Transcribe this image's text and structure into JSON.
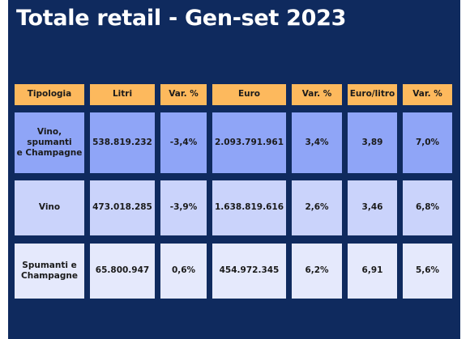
{
  "title": "Totale retail - Gen-set 2023",
  "colors": {
    "background": "#0f2a5e",
    "header": "#fdb95d",
    "row_1": "#8fa5f7",
    "row_2": "#cad3fb",
    "row_3": "#e5e9fc"
  },
  "table": {
    "headers": [
      "Tipologia",
      "Litri",
      "Var. %",
      "Euro",
      "Var. %",
      "Euro/litro",
      "Var. %"
    ],
    "rows": [
      [
        "Vino,\nspumanti\ne Champagne",
        "538.819.232",
        "-3,4%",
        "2.093.791.961",
        "3,4%",
        "3,89",
        "7,0%"
      ],
      [
        "Vino",
        "473.018.285",
        "-3,9%",
        "1.638.819.616",
        "2,6%",
        "3,46",
        "6,8%"
      ],
      [
        "Spumanti e\nChampagne",
        "65.800.947",
        "0,6%",
        "454.972.345",
        "6,2%",
        "6,91",
        "5,6%"
      ]
    ]
  }
}
